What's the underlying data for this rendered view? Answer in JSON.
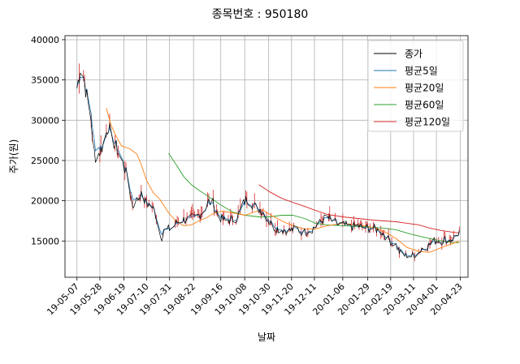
{
  "chart_data": {
    "type": "line",
    "title": "종목번호 : 950180",
    "xlabel": "날짜",
    "ylabel": "주가(원)",
    "ylim": [
      10500,
      40500
    ],
    "yticks": [
      15000,
      20000,
      25000,
      30000,
      35000,
      40000
    ],
    "x_domain": [
      "2019-04-26",
      "2020-04-30"
    ],
    "xticks": [
      {
        "date": "2019-05-07",
        "label": "19-05-07"
      },
      {
        "date": "2019-05-28",
        "label": "19-05-28"
      },
      {
        "date": "2019-06-19",
        "label": "19-06-19"
      },
      {
        "date": "2019-07-10",
        "label": "19-07-10"
      },
      {
        "date": "2019-07-31",
        "label": "19-07-31"
      },
      {
        "date": "2019-08-22",
        "label": "19-08-22"
      },
      {
        "date": "2019-09-16",
        "label": "19-09-16"
      },
      {
        "date": "2019-10-08",
        "label": "19-10-08"
      },
      {
        "date": "2019-10-30",
        "label": "19-10-30"
      },
      {
        "date": "2019-11-20",
        "label": "19-11-20"
      },
      {
        "date": "2019-12-11",
        "label": "19-12-11"
      },
      {
        "date": "2020-01-06",
        "label": "20-01-06"
      },
      {
        "date": "2020-01-29",
        "label": "20-01-29"
      },
      {
        "date": "2020-02-19",
        "label": "20-02-19"
      },
      {
        "date": "2020-03-11",
        "label": "20-03-11"
      },
      {
        "date": "2020-04-01",
        "label": "20-04-01"
      },
      {
        "date": "2020-04-23",
        "label": "20-04-23"
      }
    ],
    "grid": true,
    "legend_position": "top-right",
    "series": [
      {
        "name": "종가",
        "color": "#000000",
        "points": [
          [
            "2019-05-07",
            34000
          ],
          [
            "2019-05-10",
            36500
          ],
          [
            "2019-05-13",
            35500
          ],
          [
            "2019-05-16",
            33000
          ],
          [
            "2019-05-20",
            30000
          ],
          [
            "2019-05-22",
            26500
          ],
          [
            "2019-05-24",
            25500
          ],
          [
            "2019-05-28",
            26000
          ],
          [
            "2019-05-31",
            27000
          ],
          [
            "2019-06-03",
            28500
          ],
          [
            "2019-06-05",
            29500
          ],
          [
            "2019-06-07",
            28000
          ],
          [
            "2019-06-11",
            27000
          ],
          [
            "2019-06-14",
            26000
          ],
          [
            "2019-06-17",
            25000
          ],
          [
            "2019-06-20",
            24000
          ],
          [
            "2019-06-24",
            21500
          ],
          [
            "2019-06-27",
            19500
          ],
          [
            "2019-07-01",
            20000
          ],
          [
            "2019-07-04",
            20800
          ],
          [
            "2019-07-08",
            20000
          ],
          [
            "2019-07-11",
            19600
          ],
          [
            "2019-07-15",
            19200
          ],
          [
            "2019-07-18",
            18500
          ],
          [
            "2019-07-22",
            16000
          ],
          [
            "2019-07-24",
            15500
          ],
          [
            "2019-07-26",
            16200
          ],
          [
            "2019-07-30",
            16500
          ],
          [
            "2019-08-02",
            16600
          ],
          [
            "2019-08-06",
            17200
          ],
          [
            "2019-08-09",
            17500
          ],
          [
            "2019-08-13",
            17700
          ],
          [
            "2019-08-16",
            17600
          ],
          [
            "2019-08-20",
            17800
          ],
          [
            "2019-08-23",
            17900
          ],
          [
            "2019-08-27",
            18200
          ],
          [
            "2019-08-30",
            18600
          ],
          [
            "2019-09-03",
            19400
          ],
          [
            "2019-09-05",
            19900
          ],
          [
            "2019-09-09",
            19700
          ],
          [
            "2019-09-11",
            18800
          ],
          [
            "2019-09-17",
            17700
          ],
          [
            "2019-09-20",
            17500
          ],
          [
            "2019-09-24",
            17600
          ],
          [
            "2019-09-27",
            17700
          ],
          [
            "2019-10-01",
            17900
          ],
          [
            "2019-10-04",
            18800
          ],
          [
            "2019-10-08",
            19900
          ],
          [
            "2019-10-10",
            20300
          ],
          [
            "2019-10-14",
            19800
          ],
          [
            "2019-10-17",
            19300
          ],
          [
            "2019-10-21",
            19000
          ],
          [
            "2019-10-24",
            18700
          ],
          [
            "2019-10-28",
            18000
          ],
          [
            "2019-10-31",
            17300
          ],
          [
            "2019-11-04",
            16700
          ],
          [
            "2019-11-07",
            16500
          ],
          [
            "2019-11-11",
            16400
          ],
          [
            "2019-11-14",
            16400
          ],
          [
            "2019-11-18",
            16300
          ],
          [
            "2019-11-21",
            16400
          ],
          [
            "2019-11-25",
            16500
          ],
          [
            "2019-11-28",
            16200
          ],
          [
            "2019-12-02",
            16100
          ],
          [
            "2019-12-05",
            16300
          ],
          [
            "2019-12-09",
            16500
          ],
          [
            "2019-12-12",
            16800
          ],
          [
            "2019-12-16",
            17200
          ],
          [
            "2019-12-19",
            17700
          ],
          [
            "2019-12-23",
            17900
          ],
          [
            "2019-12-27",
            17500
          ],
          [
            "2020-01-02",
            17000
          ],
          [
            "2020-01-06",
            17000
          ],
          [
            "2020-01-09",
            16900
          ],
          [
            "2020-01-13",
            16700
          ],
          [
            "2020-01-16",
            16800
          ],
          [
            "2020-01-20",
            16900
          ],
          [
            "2020-01-23",
            16700
          ],
          [
            "2020-01-29",
            16600
          ],
          [
            "2020-02-03",
            16600
          ],
          [
            "2020-02-06",
            16400
          ],
          [
            "2020-02-10",
            16200
          ],
          [
            "2020-02-13",
            15800
          ],
          [
            "2020-02-17",
            15200
          ],
          [
            "2020-02-20",
            14800
          ],
          [
            "2020-02-24",
            14500
          ],
          [
            "2020-02-27",
            13600
          ],
          [
            "2020-03-02",
            13200
          ],
          [
            "2020-03-05",
            13200
          ],
          [
            "2020-03-09",
            13100
          ],
          [
            "2020-03-12",
            13300
          ],
          [
            "2020-03-16",
            13600
          ],
          [
            "2020-03-19",
            14100
          ],
          [
            "2020-03-23",
            14300
          ],
          [
            "2020-03-26",
            14600
          ],
          [
            "2020-03-30",
            15000
          ],
          [
            "2020-04-02",
            15100
          ],
          [
            "2020-04-06",
            15000
          ],
          [
            "2020-04-09",
            15200
          ],
          [
            "2020-04-13",
            15100
          ],
          [
            "2020-04-16",
            15300
          ],
          [
            "2020-04-20",
            15700
          ],
          [
            "2020-04-22",
            16200
          ]
        ]
      },
      {
        "name": "평균5일",
        "color": "#1f77b4",
        "points": [
          [
            "2019-05-07",
            34000
          ],
          [
            "2019-05-13",
            35300
          ],
          [
            "2019-05-20",
            32000
          ],
          [
            "2019-05-24",
            28000
          ],
          [
            "2019-05-31",
            26800
          ],
          [
            "2019-06-05",
            28500
          ],
          [
            "2019-06-11",
            27800
          ],
          [
            "2019-06-17",
            25700
          ],
          [
            "2019-06-24",
            22500
          ],
          [
            "2019-07-01",
            20300
          ],
          [
            "2019-07-08",
            20300
          ],
          [
            "2019-07-15",
            19400
          ],
          [
            "2019-07-22",
            17000
          ],
          [
            "2019-07-30",
            16200
          ],
          [
            "2019-08-09",
            17300
          ],
          [
            "2019-08-20",
            17700
          ],
          [
            "2019-08-30",
            18400
          ],
          [
            "2019-09-05",
            19600
          ],
          [
            "2019-09-17",
            18300
          ],
          [
            "2019-09-27",
            17600
          ],
          [
            "2019-10-04",
            18500
          ],
          [
            "2019-10-10",
            19800
          ],
          [
            "2019-10-21",
            19200
          ],
          [
            "2019-10-31",
            17700
          ],
          [
            "2019-11-11",
            16500
          ],
          [
            "2019-11-25",
            16400
          ],
          [
            "2019-12-05",
            16200
          ],
          [
            "2019-12-16",
            17100
          ],
          [
            "2019-12-23",
            17700
          ],
          [
            "2020-01-06",
            17100
          ],
          [
            "2020-01-20",
            16800
          ],
          [
            "2020-02-03",
            16600
          ],
          [
            "2020-02-13",
            15900
          ],
          [
            "2020-02-24",
            14700
          ],
          [
            "2020-03-05",
            13300
          ],
          [
            "2020-03-16",
            13500
          ],
          [
            "2020-03-26",
            14500
          ],
          [
            "2020-04-06",
            15000
          ],
          [
            "2020-04-16",
            15200
          ],
          [
            "2020-04-22",
            15800
          ]
        ]
      },
      {
        "name": "평균20일",
        "color": "#ff7f0e",
        "points": [
          [
            "2019-06-03",
            31500
          ],
          [
            "2019-06-07",
            29500
          ],
          [
            "2019-06-12",
            28000
          ],
          [
            "2019-06-17",
            26800
          ],
          [
            "2019-06-24",
            26500
          ],
          [
            "2019-07-01",
            25800
          ],
          [
            "2019-07-05",
            24500
          ],
          [
            "2019-07-10",
            22500
          ],
          [
            "2019-07-16",
            21000
          ],
          [
            "2019-07-22",
            20200
          ],
          [
            "2019-07-30",
            18500
          ],
          [
            "2019-08-06",
            17500
          ],
          [
            "2019-08-13",
            16900
          ],
          [
            "2019-08-20",
            17000
          ],
          [
            "2019-08-27",
            17500
          ],
          [
            "2019-09-03",
            17900
          ],
          [
            "2019-09-09",
            18400
          ],
          [
            "2019-09-17",
            18700
          ],
          [
            "2019-09-27",
            18500
          ],
          [
            "2019-10-08",
            18200
          ],
          [
            "2019-10-17",
            18600
          ],
          [
            "2019-10-24",
            18900
          ],
          [
            "2019-10-31",
            18300
          ],
          [
            "2019-11-11",
            17500
          ],
          [
            "2019-11-21",
            16900
          ],
          [
            "2019-12-02",
            16500
          ],
          [
            "2019-12-12",
            16500
          ],
          [
            "2019-12-23",
            16900
          ],
          [
            "2020-01-06",
            17200
          ],
          [
            "2020-01-20",
            17000
          ],
          [
            "2020-02-03",
            16700
          ],
          [
            "2020-02-13",
            16200
          ],
          [
            "2020-02-24",
            15300
          ],
          [
            "2020-03-05",
            14200
          ],
          [
            "2020-03-16",
            13700
          ],
          [
            "2020-03-26",
            13600
          ],
          [
            "2020-04-06",
            14200
          ],
          [
            "2020-04-16",
            14700
          ],
          [
            "2020-04-22",
            15000
          ]
        ]
      },
      {
        "name": "평균60일",
        "color": "#2ca02c",
        "points": [
          [
            "2019-07-30",
            25900
          ],
          [
            "2019-08-06",
            24500
          ],
          [
            "2019-08-13",
            23000
          ],
          [
            "2019-08-20",
            22000
          ],
          [
            "2019-08-27",
            21300
          ],
          [
            "2019-09-05",
            20500
          ],
          [
            "2019-09-17",
            19400
          ],
          [
            "2019-09-27",
            18600
          ],
          [
            "2019-10-08",
            18200
          ],
          [
            "2019-10-21",
            18000
          ],
          [
            "2019-10-31",
            18000
          ],
          [
            "2019-11-11",
            18200
          ],
          [
            "2019-11-21",
            18200
          ],
          [
            "2019-12-02",
            17800
          ],
          [
            "2019-12-12",
            17200
          ],
          [
            "2019-12-23",
            17000
          ],
          [
            "2020-01-06",
            16900
          ],
          [
            "2020-01-20",
            16800
          ],
          [
            "2020-02-03",
            16700
          ],
          [
            "2020-02-13",
            16600
          ],
          [
            "2020-02-24",
            16400
          ],
          [
            "2020-03-05",
            16000
          ],
          [
            "2020-03-16",
            15600
          ],
          [
            "2020-03-26",
            15300
          ],
          [
            "2020-04-06",
            15000
          ],
          [
            "2020-04-16",
            14800
          ],
          [
            "2020-04-22",
            14800
          ]
        ]
      },
      {
        "name": "평균120일",
        "color": "#d62728",
        "points": [
          [
            "2019-10-21",
            22000
          ],
          [
            "2019-10-31",
            21100
          ],
          [
            "2019-11-11",
            20300
          ],
          [
            "2019-11-21",
            19800
          ],
          [
            "2019-12-02",
            19300
          ],
          [
            "2019-12-12",
            18800
          ],
          [
            "2019-12-23",
            18300
          ],
          [
            "2020-01-06",
            18000
          ],
          [
            "2020-01-20",
            17800
          ],
          [
            "2020-02-03",
            17600
          ],
          [
            "2020-02-13",
            17500
          ],
          [
            "2020-02-24",
            17400
          ],
          [
            "2020-03-05",
            17200
          ],
          [
            "2020-03-16",
            17000
          ],
          [
            "2020-03-26",
            16600
          ],
          [
            "2020-04-06",
            16300
          ],
          [
            "2020-04-16",
            16100
          ],
          [
            "2020-04-22",
            16000
          ]
        ]
      }
    ]
  }
}
